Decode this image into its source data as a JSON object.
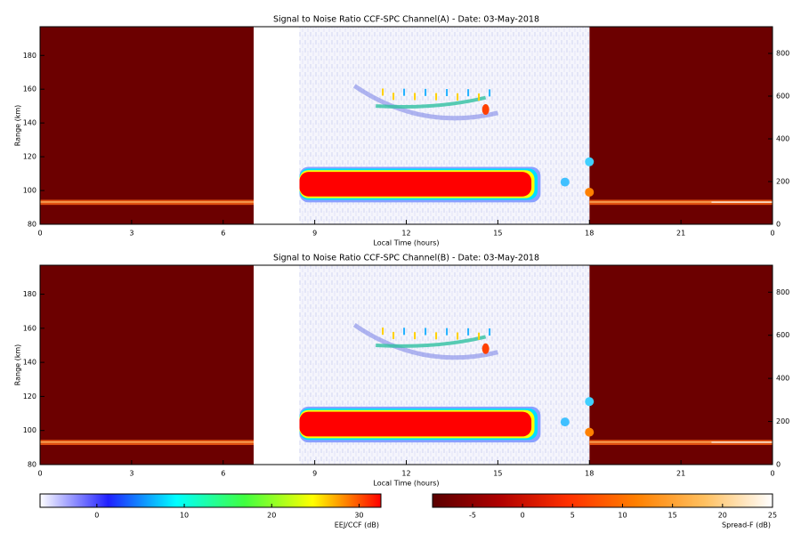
{
  "chart_data": [
    {
      "type": "heatmap",
      "title": "Signal to Noise Ratio CCF-SPC Channel(A) - Date: 03-May-2018",
      "xlabel": "Local Time (hours)",
      "ylabel": "Range (km)",
      "xlim": [
        0,
        24
      ],
      "xticks": [
        0,
        3,
        6,
        9,
        12,
        15,
        18,
        21,
        {
          "value": 24,
          "label": "0"
        }
      ],
      "ylim": [
        80,
        197
      ],
      "yticks": [
        80,
        100,
        120,
        140,
        160,
        180
      ],
      "y2lim": [
        0,
        925
      ],
      "y2ticks": [
        0,
        200,
        400,
        600,
        800
      ]
    },
    {
      "type": "heatmap",
      "title": "Signal to Noise Ratio CCF-SPC Channel(B) - Date: 03-May-2018",
      "xlabel": "Local Time (hours)",
      "ylabel": "Range (km)",
      "xlim": [
        0,
        24
      ],
      "xticks": [
        0,
        3,
        6,
        9,
        12,
        15,
        18,
        21,
        {
          "value": 24,
          "label": "0"
        }
      ],
      "ylim": [
        80,
        197
      ],
      "yticks": [
        80,
        100,
        120,
        140,
        160,
        180
      ],
      "y2lim": [
        0,
        925
      ],
      "y2ticks": [
        0,
        200,
        400,
        600,
        800
      ]
    },
    {
      "type": "colorbar",
      "xlabel": "EEJ/CCF (dB)",
      "xlim": [
        -6.5,
        32.5
      ],
      "xticks": [
        0,
        10,
        20,
        30
      ],
      "colors": [
        "#ffffff",
        "#2020ff",
        "#00ffff",
        "#40ff40",
        "#ffff00",
        "#ff0000"
      ]
    },
    {
      "type": "colorbar",
      "xlabel": "Spread-F (dB)",
      "xlim": [
        -9,
        25
      ],
      "xticks": [
        -5,
        0,
        5,
        10,
        15,
        20,
        25
      ],
      "colors": [
        "#5a0000",
        "#b00000",
        "#ff3000",
        "#ff8000",
        "#ffc060",
        "#ffffff"
      ]
    }
  ]
}
